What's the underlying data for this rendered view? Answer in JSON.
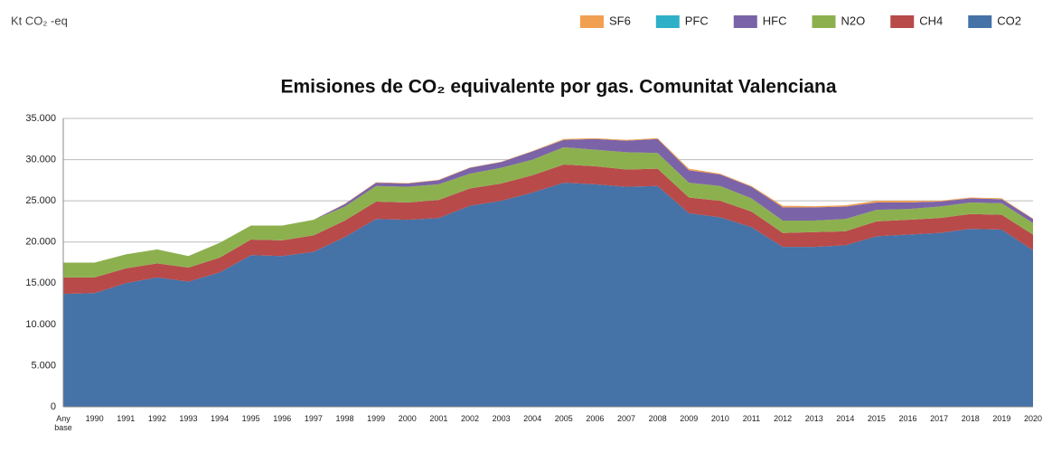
{
  "chart_data": {
    "type": "stacked_area",
    "unit_label": "Kt CO₂ -eq",
    "title": "Emisiones de CO₂ equivalente por gas. Comunitat Valenciana",
    "categories": [
      "Any base",
      "1990",
      "1991",
      "1992",
      "1993",
      "1994",
      "1995",
      "1996",
      "1997",
      "1998",
      "1999",
      "2000",
      "2001",
      "2002",
      "2003",
      "2004",
      "2005",
      "2006",
      "2007",
      "2008",
      "2009",
      "2010",
      "2011",
      "2012",
      "2013",
      "2014",
      "2015",
      "2016",
      "2017",
      "2018",
      "2019",
      "2020"
    ],
    "series": [
      {
        "name": "CO2",
        "color": "#4572a7",
        "values": [
          13700,
          13800,
          15000,
          15700,
          15200,
          16300,
          18400,
          18300,
          18800,
          20600,
          22800,
          22700,
          22900,
          24400,
          25000,
          26000,
          27200,
          27000,
          26700,
          26800,
          23500,
          23000,
          21800,
          19400,
          19400,
          19600,
          20700,
          20900,
          21100,
          21600,
          21500,
          19000
        ]
      },
      {
        "name": "CH4",
        "color": "#b84a4a",
        "values": [
          2000,
          1900,
          1800,
          1700,
          1700,
          1800,
          1900,
          1900,
          2000,
          2000,
          2100,
          2100,
          2200,
          2100,
          2100,
          2100,
          2200,
          2200,
          2100,
          2100,
          1900,
          2000,
          1900,
          1700,
          1800,
          1700,
          1800,
          1800,
          1800,
          1800,
          1800,
          1900
        ]
      },
      {
        "name": "N2O",
        "color": "#8db04f",
        "values": [
          1800,
          1800,
          1700,
          1700,
          1400,
          1800,
          1700,
          1800,
          1900,
          1700,
          1900,
          1900,
          1900,
          1800,
          1900,
          1900,
          2100,
          2000,
          2100,
          1900,
          1800,
          1800,
          1600,
          1500,
          1400,
          1500,
          1400,
          1300,
          1400,
          1400,
          1400,
          1400
        ]
      },
      {
        "name": "HFC",
        "color": "#7b63a8",
        "values": [
          0,
          0,
          0,
          0,
          0,
          0,
          0,
          0,
          0,
          300,
          400,
          400,
          500,
          700,
          700,
          1000,
          900,
          1300,
          1400,
          1700,
          1500,
          1400,
          1400,
          1600,
          1600,
          1500,
          900,
          800,
          600,
          500,
          500,
          500
        ]
      },
      {
        "name": "PFC",
        "color": "#2fb0c8",
        "values": [
          0,
          0,
          0,
          0,
          0,
          0,
          0,
          0,
          0,
          0,
          0,
          0,
          0,
          0,
          0,
          0,
          0,
          0,
          0,
          0,
          0,
          0,
          0,
          0,
          0,
          0,
          0,
          0,
          0,
          0,
          0,
          0
        ]
      },
      {
        "name": "SF6",
        "color": "#f0a050",
        "values": [
          0,
          0,
          0,
          0,
          0,
          0,
          0,
          0,
          0,
          50,
          50,
          50,
          50,
          50,
          50,
          50,
          100,
          100,
          100,
          100,
          200,
          100,
          100,
          200,
          150,
          150,
          200,
          200,
          100,
          100,
          100,
          50
        ]
      }
    ],
    "ylim": [
      0,
      35000
    ],
    "yticks": [
      0,
      {
        "value": 5000,
        "label": "5.000"
      },
      {
        "value": 10000,
        "label": "10.000"
      },
      {
        "value": 15000,
        "label": "15.000"
      },
      {
        "value": 20000,
        "label": "20.000"
      },
      {
        "value": 25000,
        "label": "25.000"
      },
      {
        "value": 30000,
        "label": "30.000"
      },
      {
        "value": 35000,
        "label": "35.000"
      }
    ],
    "grid": true,
    "legend": "top-right"
  }
}
